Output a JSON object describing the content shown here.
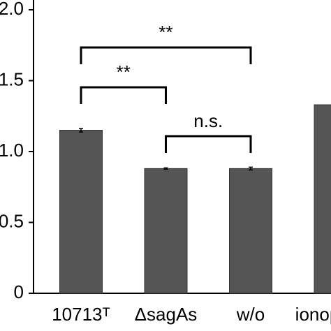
{
  "chart_data": {
    "type": "bar",
    "categories": [
      "10713ᵀ",
      "ΔsagAs",
      "w/o",
      "ionophore"
    ],
    "values": [
      1.15,
      0.88,
      0.88,
      1.33
    ],
    "errors": [
      0.012,
      0.005,
      0.01,
      null
    ],
    "color": "#555555",
    "ylim": [
      0,
      2.0
    ],
    "yticks": [
      0,
      {
        "value": 0.5,
        "label": "0.5"
      },
      {
        "value": 1.0,
        "label": "1.0"
      },
      {
        "value": 1.5,
        "label": "1.5"
      },
      {
        "value": 2.0,
        "label": "2.0"
      }
    ],
    "annotations": [
      {
        "from": 0,
        "to": 2,
        "text": "**"
      },
      {
        "from": 0,
        "to": 1,
        "text": "**"
      },
      {
        "from": 1,
        "to": 2,
        "text": "n.s."
      }
    ]
  }
}
